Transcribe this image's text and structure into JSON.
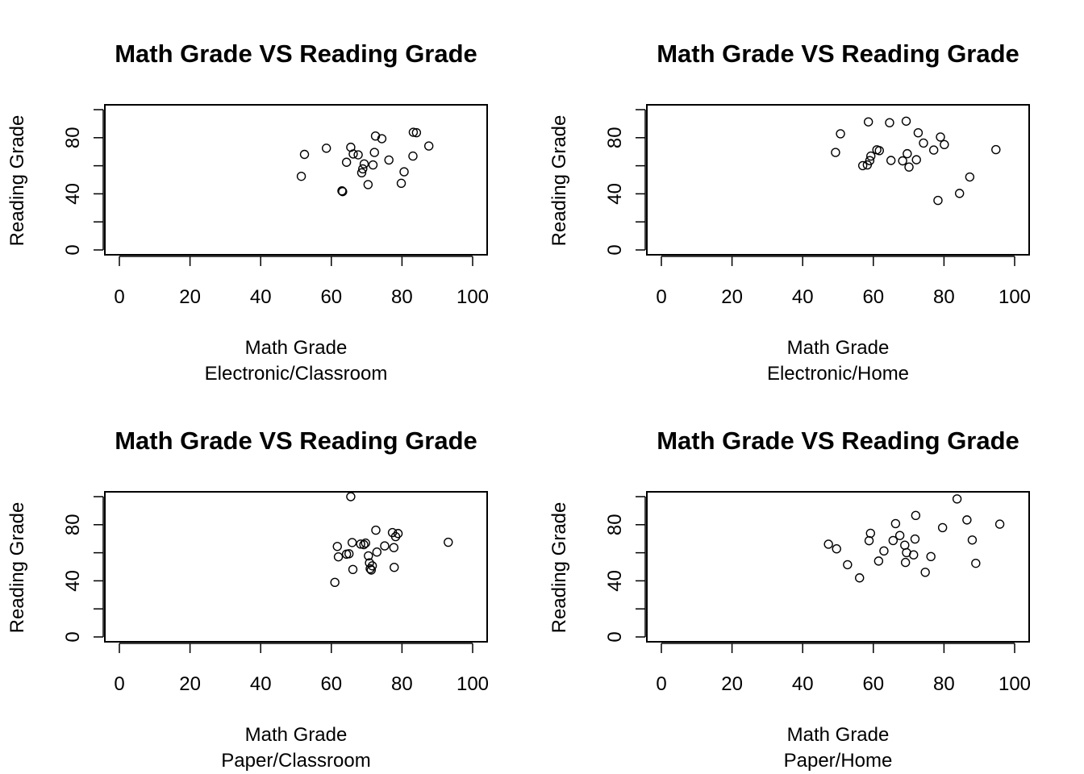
{
  "colors": {
    "background": "#ffffff",
    "foreground": "#000000"
  },
  "chart_data": [
    {
      "type": "scatter",
      "title": "Math Grade VS Reading Grade",
      "xlabel": "Math Grade",
      "subtitle": "Electronic/Classroom",
      "ylabel": "Reading Grade",
      "xlim": [
        0,
        100
      ],
      "ylim": [
        0,
        100
      ],
      "xticks": [
        0,
        20,
        40,
        60,
        80,
        100
      ],
      "yticks": [
        0,
        40,
        80
      ],
      "x": [
        51.5,
        52.4,
        58.6,
        63.0,
        63.2,
        64.3,
        65.5,
        66.2,
        67.6,
        68.6,
        68.9,
        69.3,
        70.4,
        71.8,
        72.2,
        72.5,
        74.3,
        76.3,
        79.8,
        80.6,
        83.1,
        83.2,
        84.1,
        87.6
      ],
      "y": [
        52.5,
        68.1,
        72.5,
        42.1,
        41.6,
        62.5,
        73.2,
        68.4,
        67.8,
        55.0,
        57.8,
        61.3,
        46.6,
        60.6,
        69.5,
        81.2,
        79.3,
        64.1,
        47.5,
        55.7,
        66.9,
        83.9,
        83.6,
        74.1
      ]
    },
    {
      "type": "scatter",
      "title": "Math Grade VS Reading Grade",
      "xlabel": "Math Grade",
      "subtitle": "Electronic/Home",
      "ylabel": "Reading Grade",
      "xlim": [
        0,
        100
      ],
      "ylim": [
        0,
        100
      ],
      "xticks": [
        0,
        20,
        40,
        60,
        80,
        100
      ],
      "yticks": [
        0,
        40,
        80
      ],
      "x": [
        49.3,
        50.7,
        57.0,
        58.3,
        58.6,
        59.0,
        59.3,
        61.0,
        61.7,
        64.6,
        65.0,
        68.3,
        69.3,
        69.6,
        70.1,
        72.2,
        72.7,
        74.2,
        77.1,
        78.3,
        79.0,
        80.1,
        84.4,
        87.3,
        94.7
      ],
      "y": [
        69.5,
        82.8,
        60.1,
        60.6,
        91.3,
        63.7,
        66.9,
        71.4,
        70.8,
        90.7,
        63.8,
        63.5,
        91.8,
        68.6,
        59.1,
        64.3,
        83.5,
        76.2,
        71.2,
        35.3,
        80.5,
        75.1,
        40.3,
        52.0,
        71.5
      ]
    },
    {
      "type": "scatter",
      "title": "Math Grade VS Reading Grade",
      "xlabel": "Math Grade",
      "subtitle": "Paper/Classroom",
      "ylabel": "Reading Grade",
      "xlim": [
        0,
        100
      ],
      "ylim": [
        0,
        100
      ],
      "xticks": [
        0,
        20,
        40,
        60,
        80,
        100
      ],
      "yticks": [
        0,
        40,
        80
      ],
      "x": [
        61.0,
        61.7,
        62.0,
        64.3,
        65.0,
        65.5,
        65.9,
        66.1,
        68.3,
        69.2,
        69.7,
        70.5,
        70.8,
        71.0,
        71.3,
        71.6,
        72.6,
        72.9,
        75.1,
        77.3,
        77.7,
        77.8,
        78.2,
        78.9,
        93.1
      ],
      "y": [
        38.9,
        64.5,
        57.1,
        59.0,
        59.3,
        100.0,
        67.3,
        48.1,
        66.2,
        65.8,
        66.9,
        57.8,
        52.8,
        48.6,
        47.7,
        50.7,
        76.1,
        60.5,
        64.9,
        74.4,
        63.7,
        49.6,
        71.5,
        73.7,
        67.5
      ]
    },
    {
      "type": "scatter",
      "title": "Math Grade VS Reading Grade",
      "xlabel": "Math Grade",
      "subtitle": "Paper/Home",
      "ylabel": "Reading Grade",
      "xlim": [
        0,
        100
      ],
      "ylim": [
        0,
        100
      ],
      "xticks": [
        0,
        20,
        40,
        60,
        80,
        100
      ],
      "yticks": [
        0,
        40,
        80
      ],
      "x": [
        47.3,
        49.6,
        52.7,
        56.1,
        58.8,
        59.2,
        61.5,
        63.0,
        65.6,
        66.3,
        67.5,
        68.9,
        69.1,
        69.4,
        71.4,
        71.8,
        72.0,
        74.7,
        76.3,
        79.6,
        83.7,
        86.5,
        88.0,
        89.0,
        95.8
      ],
      "y": [
        66.1,
        62.8,
        51.5,
        42.1,
        68.6,
        73.9,
        54.1,
        61.3,
        68.7,
        80.8,
        72.3,
        65.4,
        53.1,
        60.1,
        58.5,
        69.8,
        86.6,
        46.1,
        57.3,
        77.9,
        98.4,
        83.4,
        69.1,
        52.5,
        80.4
      ]
    }
  ]
}
